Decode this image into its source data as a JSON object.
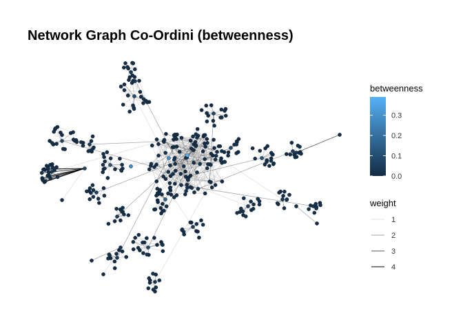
{
  "title": "Network Graph Co-Ordini (betweenness)",
  "colors": {
    "node_low": "#132B43",
    "node_high": "#56B1F7",
    "edge": "#000000",
    "background": "#ffffff"
  },
  "legend": {
    "color_title": "betweenness",
    "color_ticks": [
      {
        "value": 0.0,
        "label": "0.0"
      },
      {
        "value": 0.1,
        "label": "0.1"
      },
      {
        "value": 0.2,
        "label": "0.2"
      },
      {
        "value": 0.3,
        "label": "0.3"
      }
    ],
    "color_range": [
      0,
      0.39
    ],
    "weight_title": "weight",
    "weight_items": [
      {
        "value": 1,
        "label": "1",
        "opacity": 0.12
      },
      {
        "value": 2,
        "label": "2",
        "opacity": 0.35
      },
      {
        "value": 3,
        "label": "3",
        "opacity": 0.65
      },
      {
        "value": 4,
        "label": "4",
        "opacity": 1.0
      }
    ]
  }
}
